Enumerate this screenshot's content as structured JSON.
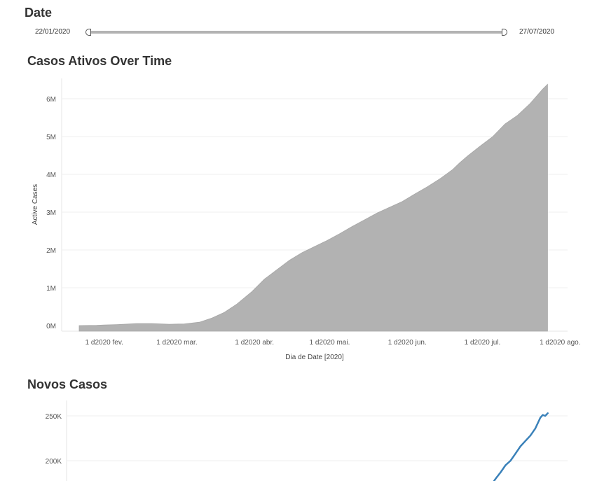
{
  "filter": {
    "title": "Date",
    "start_label": "22/01/2020",
    "end_label": "27/07/2020"
  },
  "chart_data": [
    {
      "type": "area",
      "title": "Casos Ativos Over Time",
      "xlabel": "Dia de Date [2020]",
      "ylabel": "Active Cases",
      "x_start": "2020-01-22",
      "x_end": "2020-07-27",
      "x_ticks": [
        "1 d2020 fev.",
        "1 d2020 mar.",
        "1 d2020 abr.",
        "1 d2020 mai.",
        "1 d2020 jun.",
        "1 d2020 jul.",
        "1 d2020 ago."
      ],
      "y_ticks": [
        "0M",
        "1M",
        "2M",
        "3M",
        "4M",
        "5M",
        "6M"
      ],
      "ylim": [
        -100000,
        6500000
      ],
      "grid": true,
      "color": "#b2b2b2",
      "x": [
        "2020-01-22",
        "2020-01-29",
        "2020-02-01",
        "2020-02-06",
        "2020-02-14",
        "2020-02-20",
        "2020-02-27",
        "2020-03-04",
        "2020-03-10",
        "2020-03-15",
        "2020-03-20",
        "2020-03-25",
        "2020-03-31",
        "2020-04-05",
        "2020-04-10",
        "2020-04-15",
        "2020-04-20",
        "2020-04-25",
        "2020-04-30",
        "2020-05-05",
        "2020-05-10",
        "2020-05-15",
        "2020-05-20",
        "2020-05-25",
        "2020-05-30",
        "2020-06-04",
        "2020-06-09",
        "2020-06-14",
        "2020-06-19",
        "2020-06-22",
        "2020-06-25",
        "2020-06-30",
        "2020-07-05",
        "2020-07-10",
        "2020-07-15",
        "2020-07-20",
        "2020-07-25",
        "2020-07-27"
      ],
      "values": [
        500,
        5000,
        14000,
        25000,
        52000,
        52000,
        35000,
        45000,
        88000,
        200000,
        350000,
        570000,
        900000,
        1230000,
        1480000,
        1730000,
        1930000,
        2090000,
        2250000,
        2430000,
        2620000,
        2800000,
        2980000,
        3130000,
        3280000,
        3480000,
        3670000,
        3880000,
        4120000,
        4310000,
        4480000,
        4740000,
        4990000,
        5330000,
        5560000,
        5870000,
        6250000,
        6380000
      ]
    },
    {
      "type": "line",
      "title": "Novos Casos",
      "y_ticks": [
        "250K",
        "200K"
      ],
      "grid": true,
      "color": "#3a81b9",
      "x": [
        "2020-07-04",
        "2020-07-06",
        "2020-07-08",
        "2020-07-10",
        "2020-07-12",
        "2020-07-14",
        "2020-07-16",
        "2020-07-18",
        "2020-07-20",
        "2020-07-22",
        "2020-07-24",
        "2020-07-25",
        "2020-07-26",
        "2020-07-27"
      ],
      "values": [
        172000,
        180000,
        187000,
        195000,
        200000,
        208000,
        216000,
        222000,
        228000,
        236000,
        248000,
        251000,
        250000,
        253000
      ]
    }
  ]
}
